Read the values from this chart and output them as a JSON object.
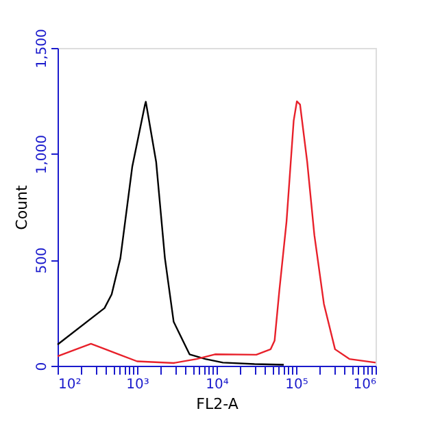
{
  "chart_data": {
    "type": "line",
    "xlabel": "FL2-A",
    "ylabel": "Count",
    "series": [
      {
        "color": "#000000",
        "x": [
          100,
          389,
          479,
          617,
          871,
          1259,
          1288,
          1738,
          2239,
          2884,
          4571,
          7244,
          12000,
          30000,
          70000
        ],
        "values": [
          100,
          272,
          337,
          508,
          941,
          1233,
          1246,
          962,
          508,
          208,
          54,
          32,
          15,
          8,
          5
        ]
      },
      {
        "color": "#e8202a",
        "x": [
          100,
          263,
          589,
          1000,
          2884,
          5623,
          9550,
          31623,
          47863,
          53703,
          61660,
          75858,
          93325,
          102329,
          112202,
          138038,
          169824,
          223872,
          309030,
          467735,
          1000000
        ],
        "values": [
          45,
          104,
          54,
          21,
          13,
          32,
          54,
          52,
          78,
          119,
          357,
          681,
          1157,
          1248,
          1233,
          962,
          617,
          292,
          78,
          32,
          15
        ]
      }
    ],
    "log": "x",
    "grid": false,
    "legend": false,
    "marker": "none",
    "line_style": "solid",
    "xlim": [
      100,
      1000000
    ],
    "xticks": [
      {
        "value": 100,
        "label": "10²"
      },
      {
        "value": 200,
        "label": null
      },
      {
        "value": 300,
        "label": null
      },
      {
        "value": 400,
        "label": null
      },
      {
        "value": 500,
        "label": null
      },
      {
        "value": 600,
        "label": null
      },
      {
        "value": 700,
        "label": null
      },
      {
        "value": 800,
        "label": null
      },
      {
        "value": 900,
        "label": null
      },
      {
        "value": 1000,
        "label": "10³"
      },
      {
        "value": 2000,
        "label": null
      },
      {
        "value": 3000,
        "label": null
      },
      {
        "value": 4000,
        "label": null
      },
      {
        "value": 5000,
        "label": null
      },
      {
        "value": 6000,
        "label": null
      },
      {
        "value": 7000,
        "label": null
      },
      {
        "value": 8000,
        "label": null
      },
      {
        "value": 9000,
        "label": null
      },
      {
        "value": 10000,
        "label": "10⁴"
      },
      {
        "value": 20000,
        "label": null
      },
      {
        "value": 30000,
        "label": null
      },
      {
        "value": 40000,
        "label": null
      },
      {
        "value": 50000,
        "label": null
      },
      {
        "value": 60000,
        "label": null
      },
      {
        "value": 70000,
        "label": null
      },
      {
        "value": 80000,
        "label": null
      },
      {
        "value": 90000,
        "label": null
      },
      {
        "value": 100000,
        "label": "10⁵"
      },
      {
        "value": 200000,
        "label": null
      },
      {
        "value": 300000,
        "label": null
      },
      {
        "value": 400000,
        "label": null
      },
      {
        "value": 500000,
        "label": null
      },
      {
        "value": 600000,
        "label": null
      },
      {
        "value": 700000,
        "label": null
      },
      {
        "value": 800000,
        "label": null
      },
      {
        "value": 900000,
        "label": null
      },
      {
        "value": 1000000,
        "label": "10⁶"
      }
    ],
    "ylim": [
      0,
      1500
    ],
    "yticks": [
      0,
      500,
      {
        "value": 1000,
        "label": "1,000"
      },
      {
        "value": 1500,
        "label": "1,500"
      }
    ]
  }
}
